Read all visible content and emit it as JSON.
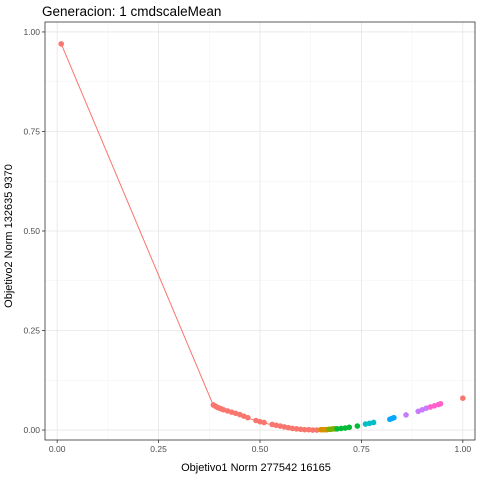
{
  "chart_data": {
    "type": "scatter",
    "title": "Generacion: 1 cmdscaleMean",
    "xlabel": "Objetivo1 Norm 277542 16165",
    "ylabel": "Objetivo2 Norm 132635 9370",
    "xlim": [
      -0.03,
      1.03
    ],
    "ylim": [
      -0.025,
      1.025
    ],
    "x_ticks": [
      0.0,
      0.25,
      0.5,
      0.75,
      1.0
    ],
    "x_tick_labels": [
      "0.00",
      "0.25",
      "0.50",
      "0.75",
      "1.00"
    ],
    "y_ticks": [
      0.0,
      0.25,
      0.5,
      0.75,
      1.0
    ],
    "y_tick_labels": [
      "0.00",
      "0.25",
      "0.50",
      "0.75",
      "1.00"
    ],
    "grid": true,
    "legend": "none",
    "front_line": {
      "color": "#f8766d",
      "points": [
        [
          0.01,
          0.97
        ],
        [
          0.385,
          0.062
        ],
        [
          0.42,
          0.048
        ],
        [
          0.47,
          0.03
        ],
        [
          0.51,
          0.018
        ],
        [
          0.55,
          0.008
        ],
        [
          0.59,
          0.002
        ],
        [
          0.63,
          0.0
        ]
      ]
    },
    "series": [
      {
        "color": "#f8766d",
        "points": [
          [
            0.01,
            0.97
          ],
          [
            1.0,
            0.08
          ],
          [
            0.385,
            0.063
          ],
          [
            0.39,
            0.06
          ],
          [
            0.395,
            0.057
          ],
          [
            0.4,
            0.055
          ],
          [
            0.405,
            0.053
          ],
          [
            0.41,
            0.051
          ],
          [
            0.42,
            0.048
          ],
          [
            0.43,
            0.045
          ],
          [
            0.44,
            0.042
          ],
          [
            0.45,
            0.039
          ],
          [
            0.46,
            0.035
          ],
          [
            0.47,
            0.031
          ],
          [
            0.49,
            0.024
          ],
          [
            0.5,
            0.021
          ],
          [
            0.51,
            0.019
          ],
          [
            0.53,
            0.014
          ],
          [
            0.54,
            0.012
          ],
          [
            0.55,
            0.01
          ],
          [
            0.56,
            0.008
          ],
          [
            0.57,
            0.006
          ],
          [
            0.58,
            0.004
          ],
          [
            0.59,
            0.003
          ],
          [
            0.6,
            0.002
          ],
          [
            0.61,
            0.001
          ],
          [
            0.62,
            0.001
          ],
          [
            0.63,
            0.0
          ],
          [
            0.64,
            0.0
          ]
        ]
      },
      {
        "color": "#d89000",
        "points": [
          [
            0.65,
            0.001
          ],
          [
            0.655,
            0.001
          ],
          [
            0.66,
            0.001
          ],
          [
            0.665,
            0.001
          ]
        ]
      },
      {
        "color": "#7cae00",
        "points": [
          [
            0.67,
            0.002
          ],
          [
            0.675,
            0.002
          ],
          [
            0.68,
            0.003
          ],
          [
            0.685,
            0.003
          ]
        ]
      },
      {
        "color": "#00ba38",
        "points": [
          [
            0.69,
            0.003
          ],
          [
            0.7,
            0.004
          ],
          [
            0.71,
            0.005
          ],
          [
            0.72,
            0.007
          ],
          [
            0.74,
            0.01
          ]
        ]
      },
      {
        "color": "#00bfc4",
        "points": [
          [
            0.76,
            0.015
          ],
          [
            0.77,
            0.017
          ],
          [
            0.78,
            0.019
          ]
        ]
      },
      {
        "color": "#00a9ff",
        "points": [
          [
            0.82,
            0.027
          ],
          [
            0.825,
            0.029
          ],
          [
            0.83,
            0.031
          ]
        ]
      },
      {
        "color": "#c77cff",
        "points": [
          [
            0.86,
            0.038
          ],
          [
            0.89,
            0.047
          ],
          [
            0.9,
            0.051
          ],
          [
            0.91,
            0.055
          ]
        ]
      },
      {
        "color": "#ff61cc",
        "points": [
          [
            0.92,
            0.058
          ],
          [
            0.93,
            0.061
          ],
          [
            0.94,
            0.064
          ],
          [
            0.945,
            0.066
          ]
        ]
      }
    ]
  }
}
